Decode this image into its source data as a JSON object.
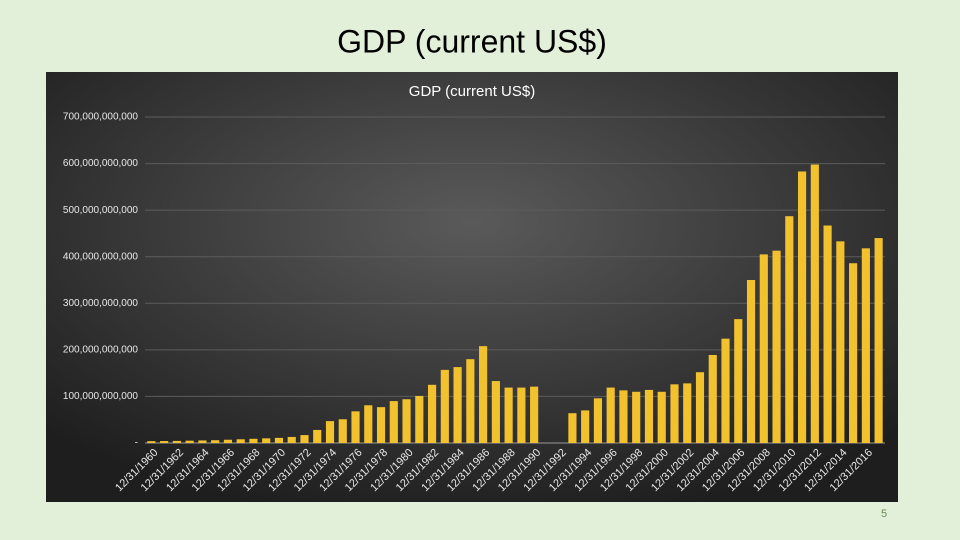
{
  "slide": {
    "title": "GDP (current US$)",
    "page_number": "5"
  },
  "chart_data": {
    "type": "bar",
    "title": "GDP (current US$)",
    "categories": [
      "12/31/1960",
      null,
      "12/31/1962",
      null,
      "12/31/1964",
      null,
      "12/31/1966",
      null,
      "12/31/1968",
      null,
      "12/31/1970",
      null,
      "12/31/1972",
      null,
      "12/31/1974",
      null,
      "12/31/1976",
      null,
      "12/31/1978",
      null,
      "12/31/1980",
      null,
      "12/31/1982",
      null,
      "12/31/1984",
      null,
      "12/31/1986",
      null,
      "12/31/1988",
      null,
      "12/31/1990",
      null,
      "12/31/1992",
      null,
      "12/31/1994",
      null,
      "12/31/1996",
      null,
      "12/31/1998",
      null,
      "12/31/2000",
      null,
      "12/31/2002",
      null,
      "12/31/2004",
      null,
      "12/31/2006",
      null,
      "12/31/2008",
      null,
      "12/31/2010",
      null,
      "12/31/2012",
      null,
      "12/31/2014",
      null,
      "12/31/2016",
      null
    ],
    "values": [
      4000000000,
      4200000000,
      4500000000,
      5000000000,
      5500000000,
      6000000000,
      7000000000,
      8000000000,
      9000000000,
      10000000000,
      11000000000,
      13000000000,
      17000000000,
      28000000000,
      47000000000,
      51000000000,
      68000000000,
      81000000000,
      77000000000,
      90000000000,
      94000000000,
      101000000000,
      125000000000,
      157000000000,
      163000000000,
      180000000000,
      208000000000,
      133000000000,
      119000000000,
      119000000000,
      121000000000,
      null,
      null,
      64000000000,
      70000000000,
      96000000000,
      119000000000,
      113000000000,
      110000000000,
      114000000000,
      110000000000,
      126000000000,
      128000000000,
      152000000000,
      189000000000,
      224000000000,
      266000000000,
      350000000000,
      405000000000,
      413000000000,
      487000000000,
      583000000000,
      598000000000,
      467000000000,
      433000000000,
      386000000000,
      418000000000,
      440000000000
    ],
    "color": "#f2c12e",
    "ylim": [
      0,
      700000000000
    ],
    "yticks": [
      {
        "value": 0,
        "label": "-"
      },
      {
        "value": 100000000000,
        "label": "100,000,000,000"
      },
      {
        "value": 200000000000,
        "label": "200,000,000,000"
      },
      {
        "value": 300000000000,
        "label": "300,000,000,000"
      },
      {
        "value": 400000000000,
        "label": "400,000,000,000"
      },
      {
        "value": 500000000000,
        "label": "500,000,000,000"
      },
      {
        "value": 600000000000,
        "label": "600,000,000,000"
      },
      {
        "value": 700000000000,
        "label": "700,000,000,000"
      }
    ],
    "grid": true
  }
}
